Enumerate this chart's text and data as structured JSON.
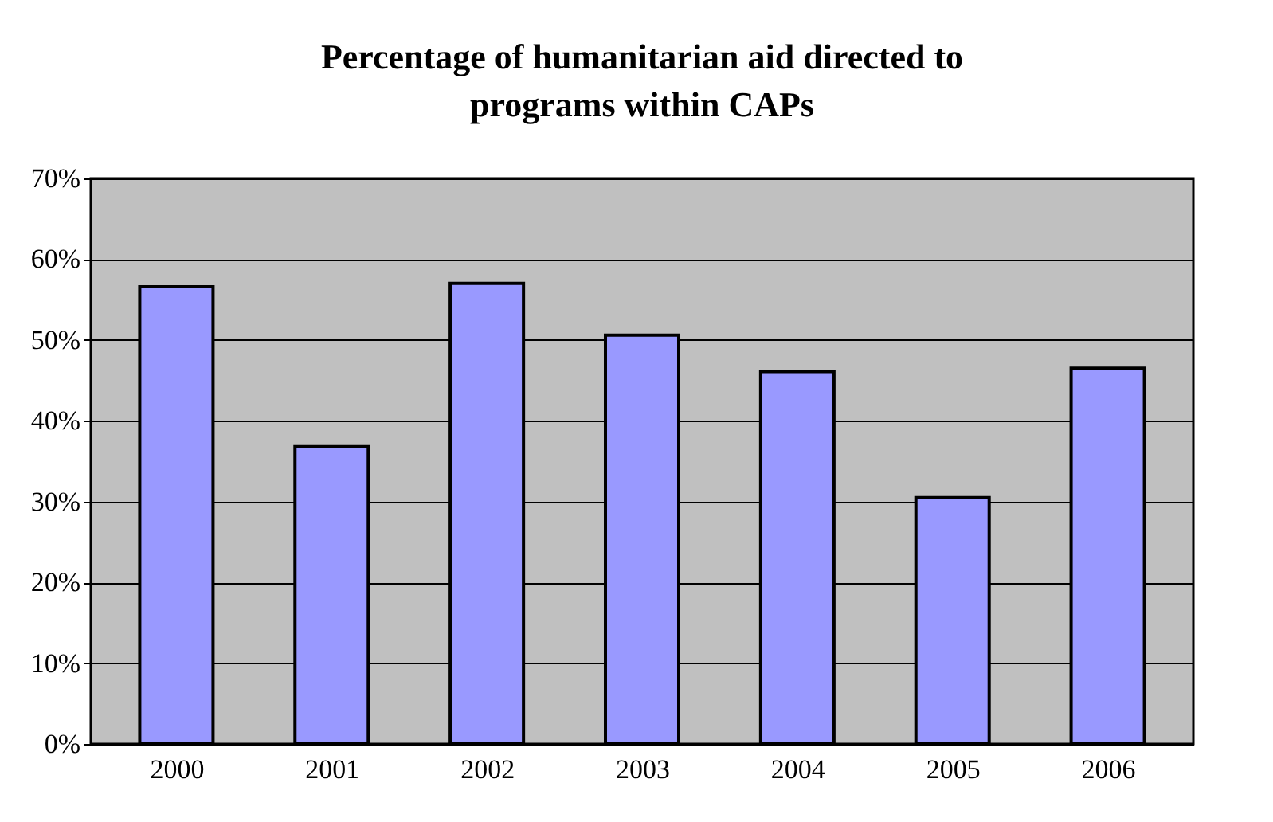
{
  "chart_data": {
    "type": "bar",
    "title": "Percentage of humanitarian aid directed to programs within CAPs",
    "categories": [
      "2000",
      "2001",
      "2002",
      "2003",
      "2004",
      "2005",
      "2006"
    ],
    "values": [
      56.6,
      36.8,
      57.0,
      50.6,
      46.1,
      30.5,
      46.5
    ],
    "color": "#9999ff",
    "ylim": [
      0,
      70
    ],
    "yticks": [
      {
        "value": 0,
        "label": "0%"
      },
      {
        "value": 10,
        "label": "10%"
      },
      {
        "value": 20,
        "label": "20%"
      },
      {
        "value": 30,
        "label": "30%"
      },
      {
        "value": 40,
        "label": "40%"
      },
      {
        "value": 50,
        "label": "50%"
      },
      {
        "value": 60,
        "label": "60%"
      },
      {
        "value": 70,
        "label": "70%"
      }
    ],
    "grid": "y"
  }
}
